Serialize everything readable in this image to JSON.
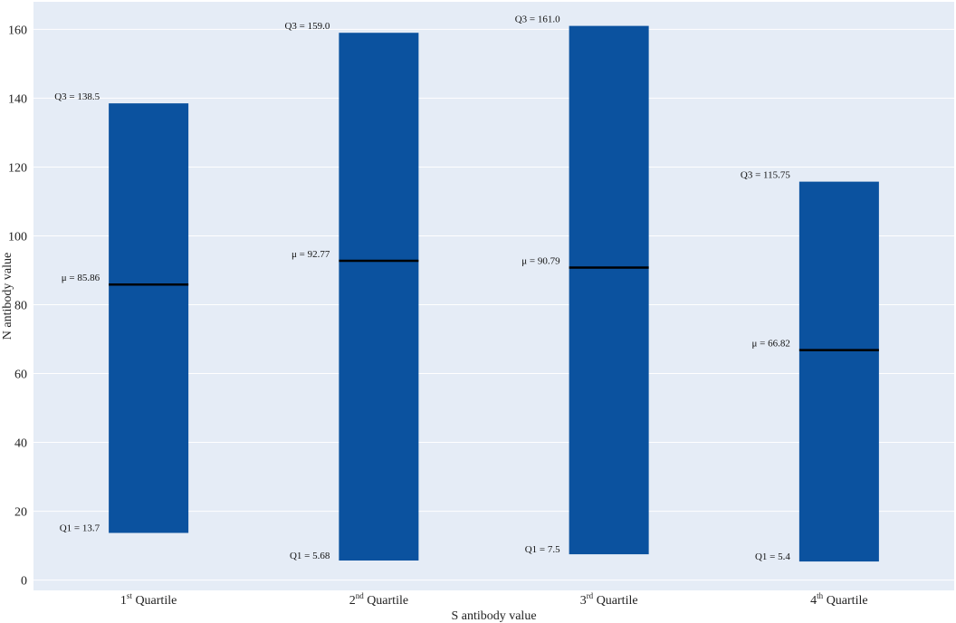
{
  "chart_data": {
    "type": "bar",
    "subtype": "floating-range-bar",
    "title": "",
    "xlabel": "S antibody value",
    "ylabel": "N antibody value",
    "ylim": [
      -3,
      168
    ],
    "yticks": [
      0,
      20,
      40,
      60,
      80,
      100,
      120,
      140,
      160
    ],
    "grid": "horizontal",
    "legend": "none",
    "categories": [
      {
        "base": "1",
        "sup": "st",
        "rest": " Quartile"
      },
      {
        "base": "2",
        "sup": "nd",
        "rest": " Quartile"
      },
      {
        "base": "3",
        "sup": "rd",
        "rest": " Quartile"
      },
      {
        "base": "4",
        "sup": "th",
        "rest": " Quartile"
      }
    ],
    "series": [
      {
        "q1": [
          13.7,
          5.68,
          7.5,
          5.4
        ],
        "q3": [
          138.5,
          159.0,
          161.0,
          115.75
        ],
        "mean": [
          85.86,
          92.77,
          90.79,
          66.82
        ]
      }
    ],
    "annotations": {
      "q3": [
        "Q3 = 138.5",
        "Q3 = 159.0",
        "Q3 = 161.0",
        "Q3 = 115.75"
      ],
      "mean": [
        "μ = 85.86",
        "μ = 92.77",
        "μ = 90.79",
        "μ = 66.82"
      ],
      "q1": [
        "Q1 = 13.7",
        "Q1 = 5.68",
        "Q1 = 7.5",
        "Q1 = 5.4"
      ]
    },
    "colors": {
      "background": "#e5ecf6",
      "bar": "#0b529f",
      "mean_line": "#000000",
      "grid": "#ffffff"
    }
  }
}
